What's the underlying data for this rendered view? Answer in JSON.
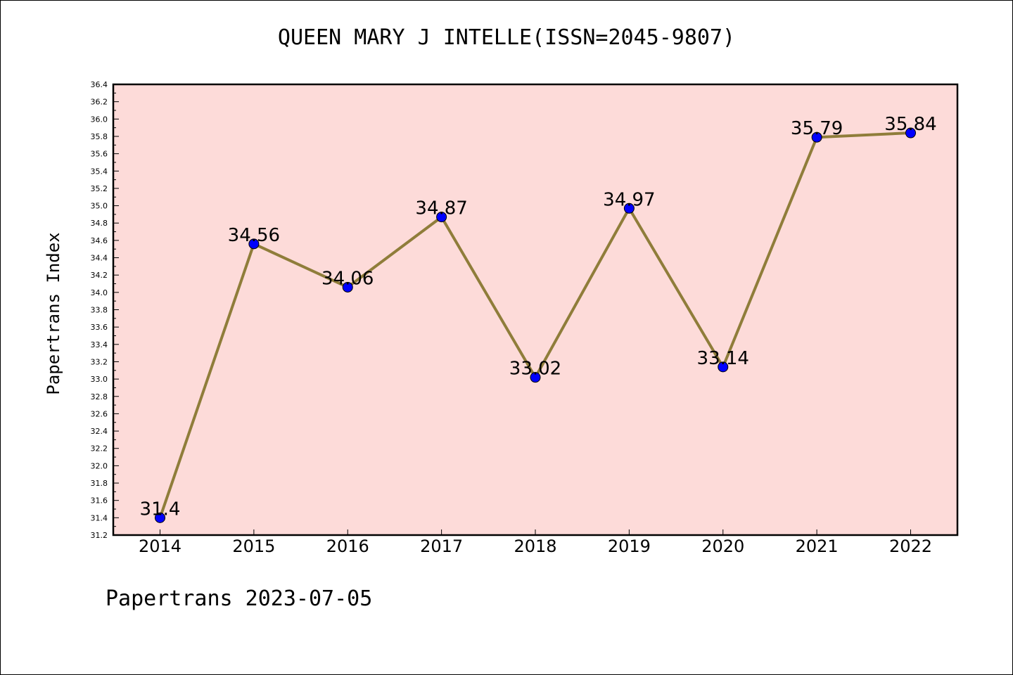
{
  "chart_data": {
    "type": "line",
    "title": "QUEEN MARY J INTELLE(ISSN=2045-9807)",
    "ylabel": "Papertrans Index",
    "xlabel": "",
    "categories": [
      "2014",
      "2015",
      "2016",
      "2017",
      "2018",
      "2019",
      "2020",
      "2021",
      "2022"
    ],
    "values": [
      31.4,
      34.56,
      34.06,
      34.87,
      33.02,
      34.97,
      33.14,
      35.79,
      35.84
    ],
    "data_labels": [
      "31.4",
      "34.56",
      "34.06",
      "34.87",
      "33.02",
      "34.97",
      "33.14",
      "35.79",
      "35.84"
    ],
    "ylim": [
      31.2,
      36.4
    ],
    "ytick_step": 0.2,
    "grid": false,
    "colors": {
      "plot_background": "#fddbd9",
      "line": "#8f7d3a",
      "marker": "#0000ff"
    }
  },
  "footer": "Papertrans 2023-07-05"
}
